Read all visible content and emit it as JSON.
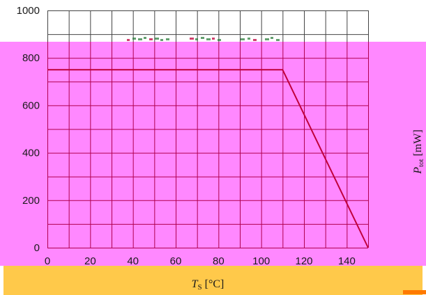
{
  "colors": {
    "pink_band": "#ff88ff",
    "gold_band": "#ffc94a",
    "corner_mark": "#ff7a00",
    "grid": "#b0004e",
    "grid_top": "#444444",
    "curve": "#c0003c",
    "noise": "#2f7f3f"
  },
  "chart_data": {
    "type": "line",
    "title": "",
    "xlabel_symbol": "T",
    "xlabel_sub": "S",
    "xlabel_unit": " [°C]",
    "ylabel_symbol": "P",
    "ylabel_sub": "tot",
    "ylabel_unit": " [mW]",
    "xlim": [
      0,
      150
    ],
    "ylim": [
      0,
      1000
    ],
    "x_grid_step": 10,
    "y_grid_step": 100,
    "grid": true,
    "x_ticks": [
      0,
      20,
      40,
      60,
      80,
      100,
      120,
      140
    ],
    "x_tick_labels": [
      "0",
      "20",
      "40",
      "60",
      "80",
      "100",
      "120",
      "140"
    ],
    "y_ticks": [
      0,
      200,
      400,
      600,
      800,
      1000
    ],
    "y_tick_labels": [
      "0",
      "200",
      "400",
      "600",
      "800",
      "1000"
    ],
    "series": [
      {
        "x": [
          0,
          110,
          150
        ],
        "y": [
          750,
          750,
          0
        ]
      }
    ]
  }
}
